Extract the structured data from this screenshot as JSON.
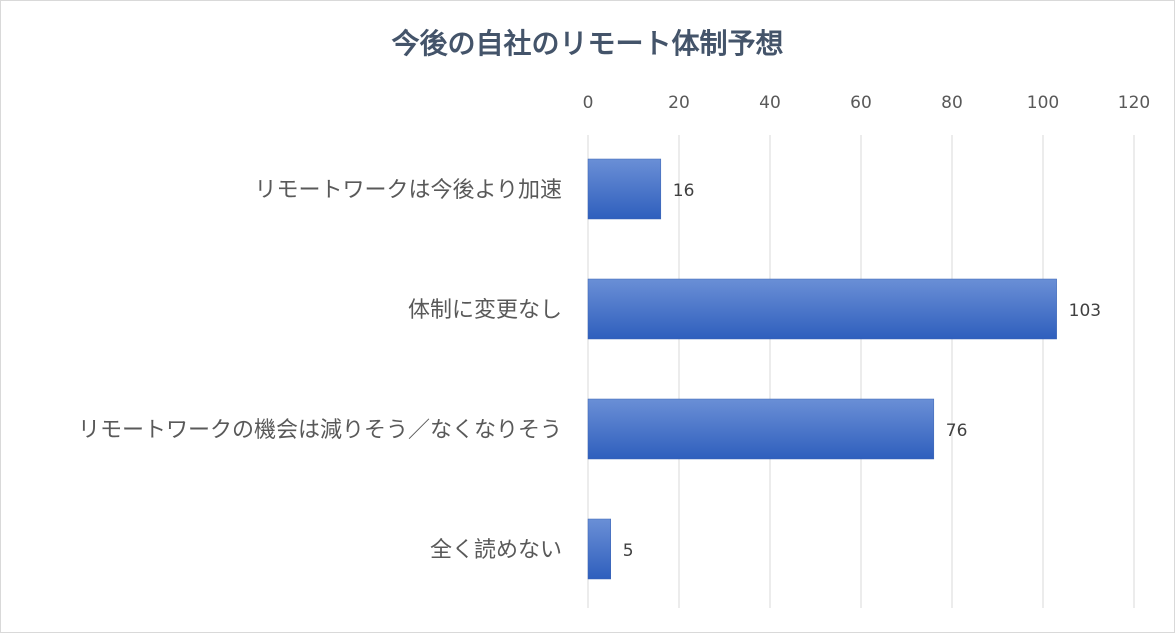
{
  "chart_data": {
    "type": "bar",
    "orientation": "horizontal",
    "title": "今後の自社のリモート体制予想",
    "categories": [
      "リモートワークは今後より加速",
      "体制に変更なし",
      "リモートワークの機会は減りそう／なくなりそう",
      "全く読めない"
    ],
    "values": [
      16,
      103,
      76,
      5
    ],
    "xlim": [
      0,
      120
    ],
    "x_ticks": [
      0,
      20,
      40,
      60,
      80,
      100,
      120
    ],
    "x_axis_position": "top",
    "grid": true,
    "legend": "none",
    "bar_color": "#4472c4",
    "data_labels": [
      "16",
      "103",
      "76",
      "5"
    ]
  }
}
